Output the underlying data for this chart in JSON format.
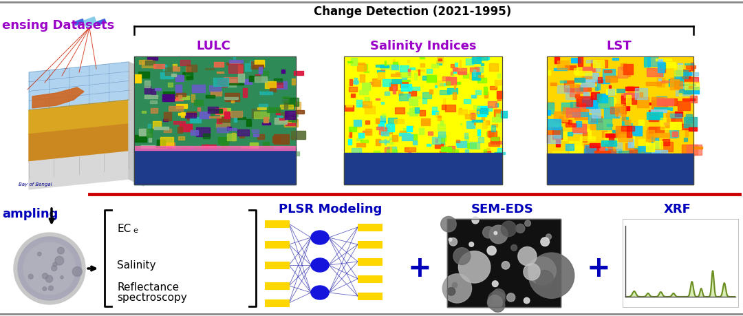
{
  "bg_color": "#FFFFFF",
  "title_change_detection": "Change Detection (2021-1995)",
  "label_lulc": "LULC",
  "label_salinity": "Salinity Indices",
  "label_lst": "LST",
  "label_plsr": "PLSR Modeling",
  "label_sem": "SEM-EDS",
  "label_xrf": "XRF",
  "label_sensing": "ensing Datasets",
  "label_sampling": "ampling",
  "purple_color": "#9B00C8",
  "blue_dark": "#0000BB",
  "blue_nn": "#1010EE",
  "red_line": "#CC0000",
  "white": "#FFFFFF",
  "black": "#000000",
  "top_bar_color": "#333333",
  "bracket_color": "#000000",
  "nn_yellow": "#FFD700",
  "nn_blue": "#1414DD"
}
